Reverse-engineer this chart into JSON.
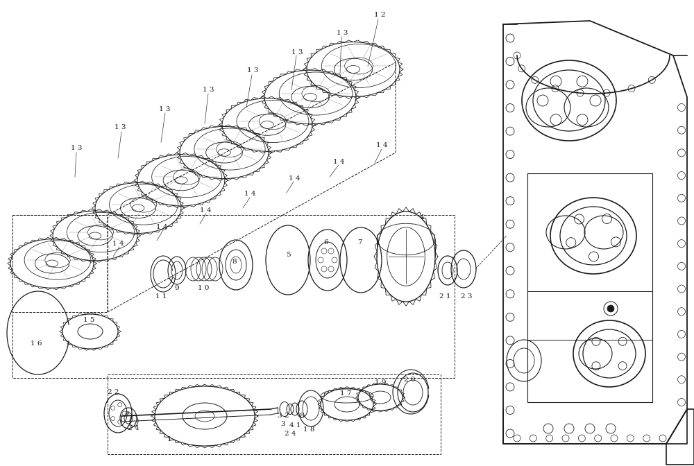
{
  "bg": "#ffffff",
  "lc": "#1a1a1a",
  "lw_base": 0.8,
  "fig_w": 10.0,
  "fig_h": 6.72,
  "dpi": 100
}
